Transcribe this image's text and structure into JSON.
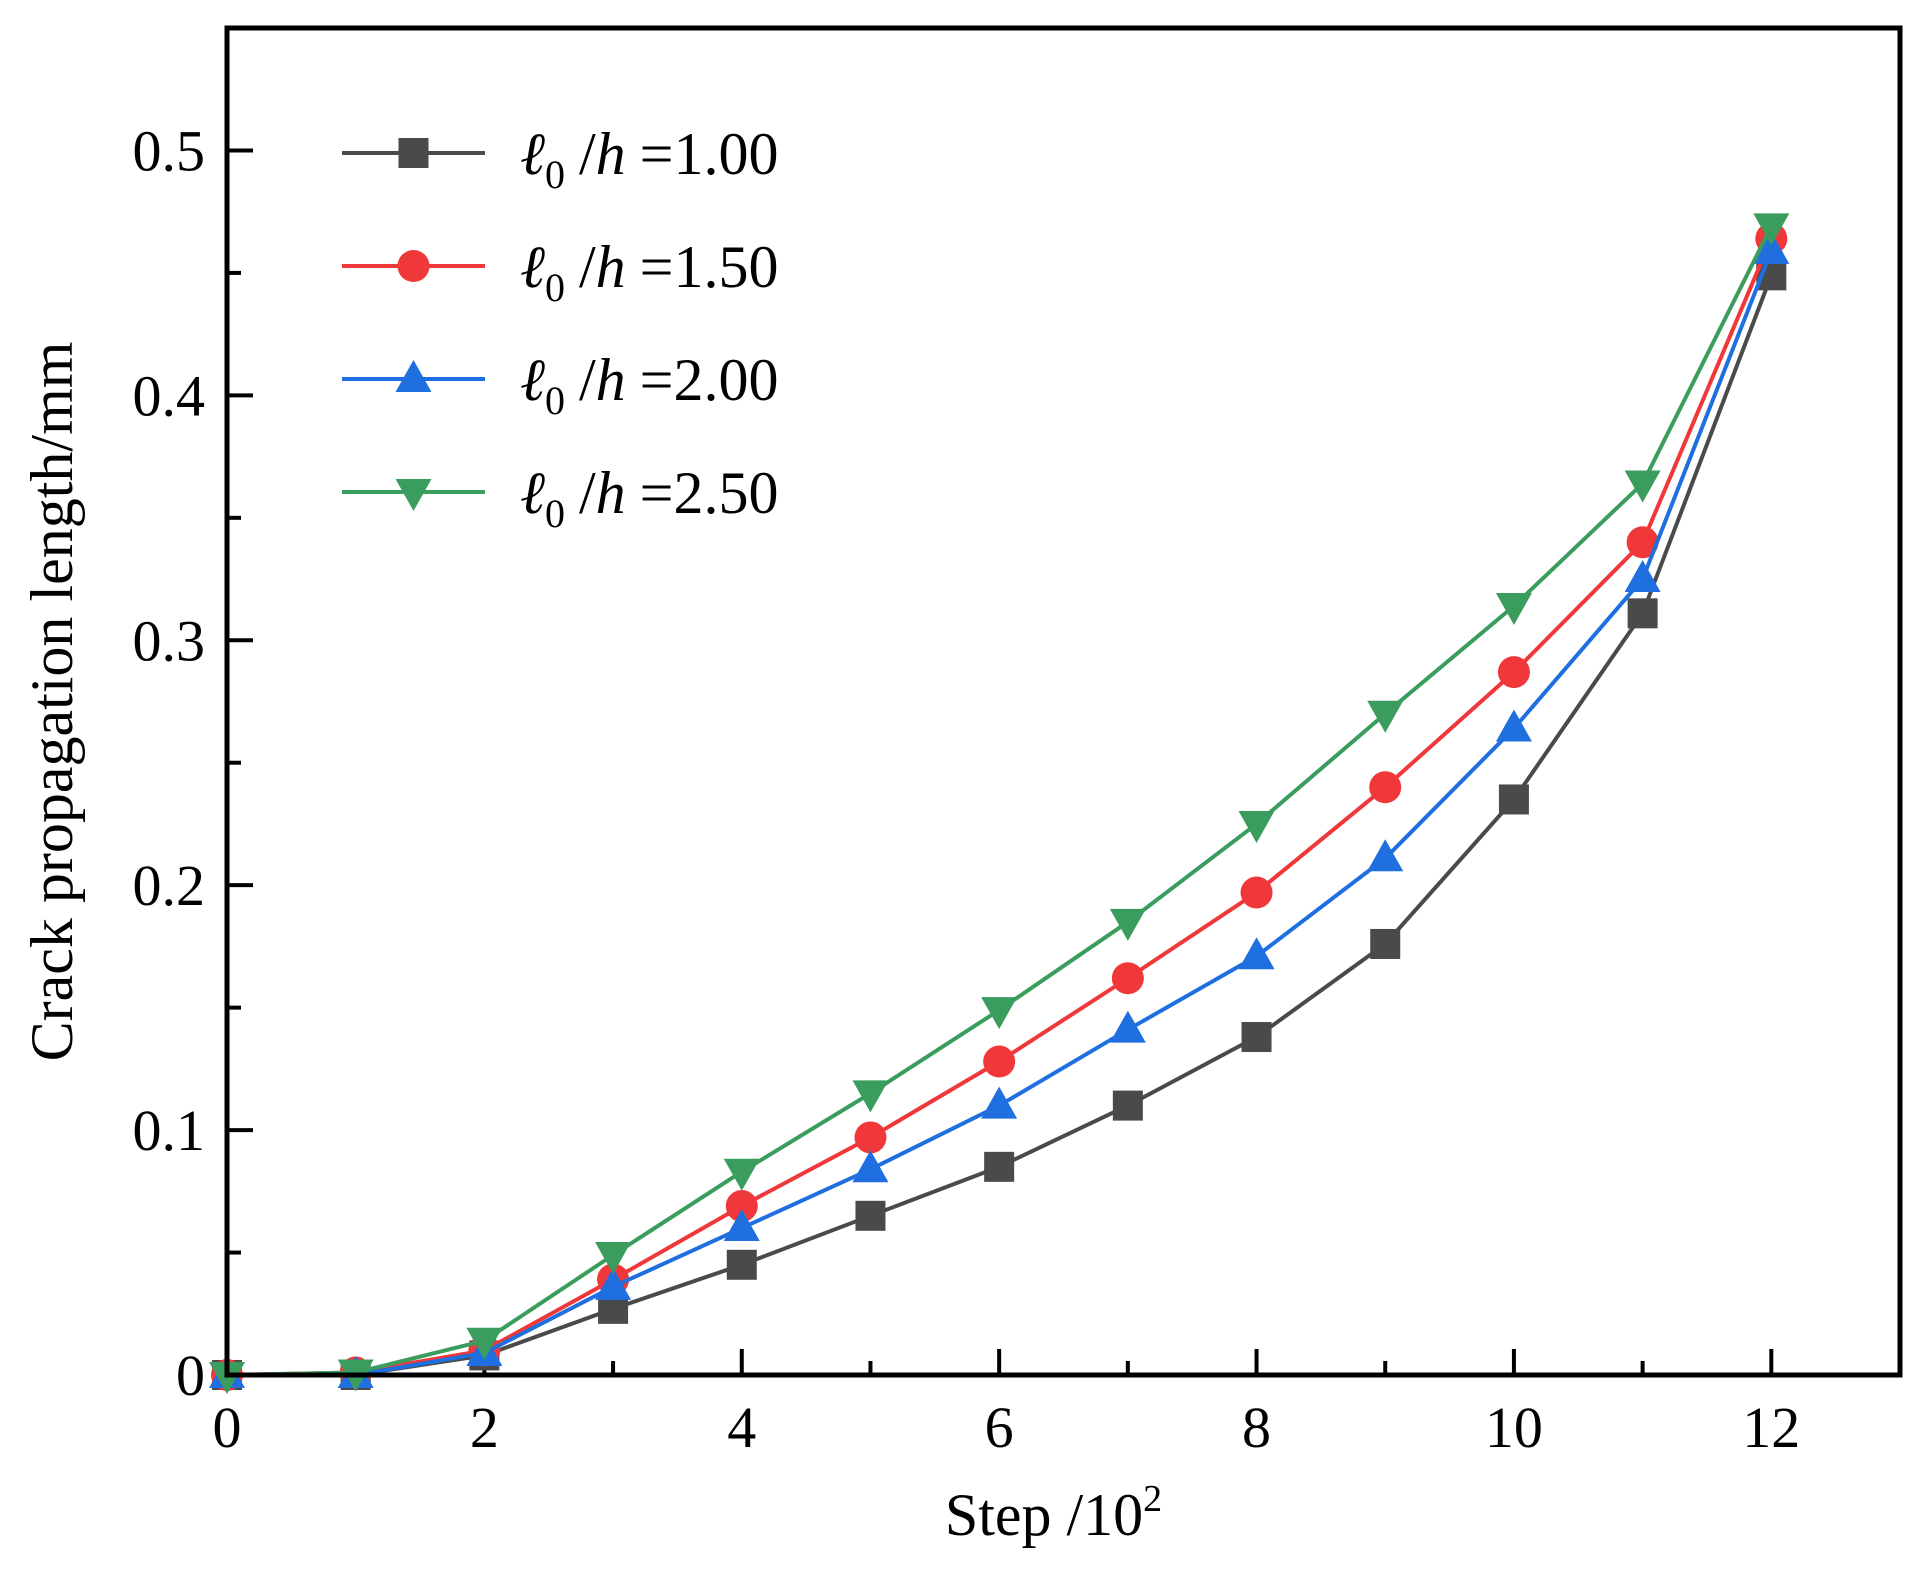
{
  "chart_data": {
    "type": "line",
    "title": "",
    "xlabel": "Step /10",
    "xlabel_superscript": "2",
    "ylabel": "Crack propagation length/mm",
    "xlim": [
      0,
      13
    ],
    "ylim": [
      0,
      0.55
    ],
    "x_major_ticks": [
      0,
      2,
      4,
      6,
      8,
      10,
      12
    ],
    "x_tick_labels": [
      "0",
      "2",
      "4",
      "6",
      "8",
      "10",
      "12"
    ],
    "y_major_ticks": [
      0,
      0.1,
      0.2,
      0.3,
      0.4,
      0.5
    ],
    "y_tick_labels": [
      "0",
      "0.1",
      "0.2",
      "0.3",
      "0.4",
      "0.5"
    ],
    "legend_position": "top-left",
    "x": [
      0,
      1,
      2,
      3,
      4,
      5,
      6,
      7,
      8,
      9,
      10,
      11,
      12
    ],
    "series": [
      {
        "name": "ℓ0 /h =1.00",
        "legend_symbol": "ℓ",
        "legend_sub": "0",
        "legend_italic": "h",
        "legend_value": "=1.00",
        "color": "#4a4a4a",
        "marker": "square",
        "values": [
          0,
          0,
          0.008,
          0.027,
          0.045,
          0.065,
          0.085,
          0.11,
          0.138,
          0.176,
          0.235,
          0.311,
          0.449
        ]
      },
      {
        "name": "ℓ0 /h =1.50",
        "legend_symbol": "ℓ",
        "legend_sub": "0",
        "legend_italic": "h",
        "legend_value": "=1.50",
        "color": "#f0373a",
        "marker": "circle",
        "values": [
          0,
          0.001,
          0.01,
          0.039,
          0.069,
          0.097,
          0.128,
          0.162,
          0.197,
          0.24,
          0.287,
          0.34,
          0.464
        ]
      },
      {
        "name": "ℓ0 /h =2.00",
        "legend_symbol": "ℓ",
        "legend_sub": "0",
        "legend_italic": "h",
        "legend_value": "=2.00",
        "color": "#1f6fe0",
        "marker": "triangle-up",
        "values": [
          0,
          0,
          0.009,
          0.036,
          0.06,
          0.084,
          0.11,
          0.141,
          0.171,
          0.211,
          0.264,
          0.325,
          0.459
        ]
      },
      {
        "name": "ℓ0 /h =2.50",
        "legend_symbol": "ℓ",
        "legend_sub": "0",
        "legend_italic": "h",
        "legend_value": "=2.50",
        "color": "#3a9d5d",
        "marker": "triangle-down",
        "values": [
          0,
          0.001,
          0.014,
          0.049,
          0.083,
          0.115,
          0.149,
          0.185,
          0.225,
          0.27,
          0.314,
          0.364,
          0.469
        ]
      }
    ]
  }
}
